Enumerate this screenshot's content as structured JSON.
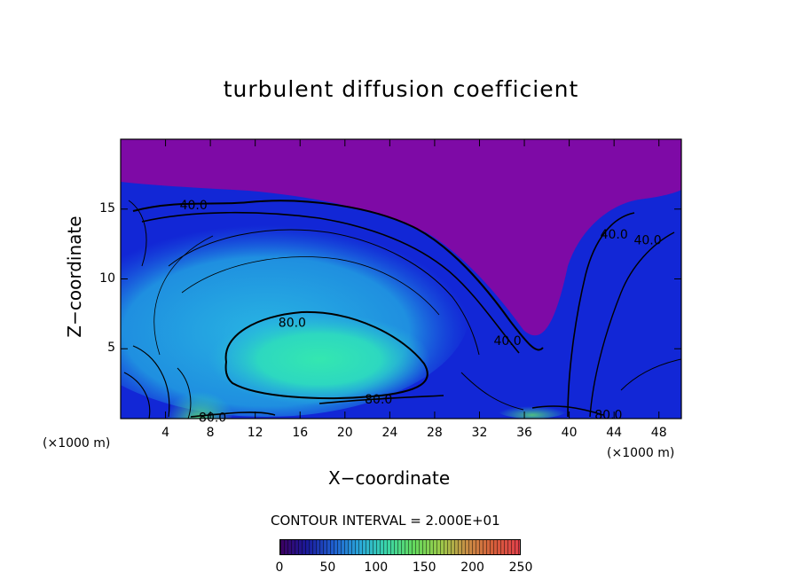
{
  "chart_data": {
    "type": "heatmap",
    "title": "turbulent diffusion coefficient",
    "xlabel": "X−coordinate",
    "ylabel": "Z−coordinate",
    "x_unit": "(×1000 m)",
    "z_unit": "(×1000 m)",
    "xlim": [
      0,
      50
    ],
    "ylim": [
      0,
      20
    ],
    "x_ticks": [
      4,
      8,
      12,
      16,
      20,
      24,
      28,
      32,
      36,
      40,
      44,
      48
    ],
    "y_ticks": [
      5,
      10,
      15
    ],
    "contour_labels": [
      {
        "text": "40.0",
        "x": 6.5,
        "z": 15.3
      },
      {
        "text": "80.0",
        "x": 15.3,
        "z": 6.9
      },
      {
        "text": "80.0",
        "x": 23.0,
        "z": 1.4
      },
      {
        "text": "80.0",
        "x": 8.2,
        "z": 0.1
      },
      {
        "text": "40.0",
        "x": 34.5,
        "z": 5.6
      },
      {
        "text": "40.0",
        "x": 44.0,
        "z": 13.2
      },
      {
        "text": "40.0",
        "x": 47.0,
        "z": 12.8
      },
      {
        "text": "80.0",
        "x": 43.5,
        "z": 0.3
      }
    ],
    "contour_interval_text": "CONTOUR INTERVAL =  2.000E+01",
    "colorbar": {
      "min": 0,
      "max": 250,
      "ticks": [
        0,
        50,
        100,
        150,
        200,
        250
      ],
      "colors": [
        "#3d0060",
        "#1a1a9a",
        "#1f5fd0",
        "#2aa8d8",
        "#3ad6a8",
        "#63d95e",
        "#9acb4a",
        "#c88e45",
        "#d65e3a",
        "#e0404a"
      ]
    },
    "field_colors": {
      "background_top": "#7e0aa6",
      "low": "#1227d6",
      "mid": "#23a9e6",
      "high": "#2fe3b2",
      "peak": "#4ae27a"
    }
  }
}
